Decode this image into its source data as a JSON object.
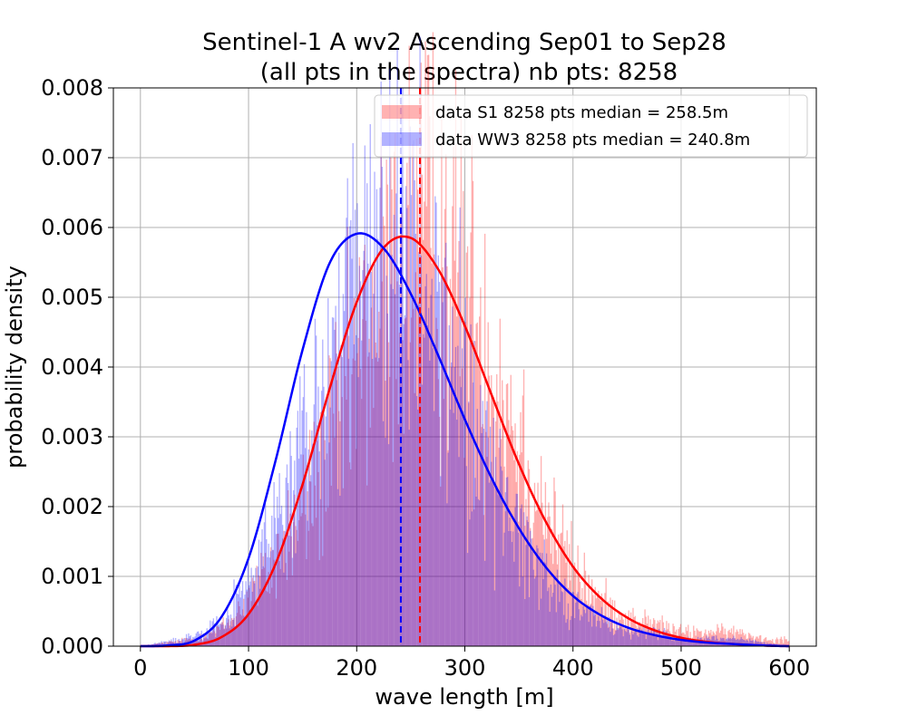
{
  "chart_data": {
    "type": "histogram",
    "title": [
      "Sentinel-1 A wv2 Ascending Sep01 to Sep28",
      "(all pts in the spectra) nb pts: 8258"
    ],
    "xlabel": "wave length [m]",
    "ylabel": "probability density",
    "xlim": [
      -25,
      625
    ],
    "ylim": [
      0,
      0.008
    ],
    "xticks": [
      0,
      100,
      200,
      300,
      400,
      500,
      600
    ],
    "xtick_labels": [
      "0",
      "100",
      "200",
      "300",
      "400",
      "500",
      "600"
    ],
    "yticks": [
      0,
      0.001,
      0.002,
      0.003,
      0.004,
      0.005,
      0.006,
      0.007,
      0.008
    ],
    "ytick_labels": [
      "0.000",
      "0.001",
      "0.002",
      "0.003",
      "0.004",
      "0.005",
      "0.006",
      "0.007",
      "0.008"
    ],
    "grid": true,
    "legend_position": "top-right",
    "legend": [
      "data S1 8258 pts median = 258.5m",
      "data WW3 8258 pts median = 240.8m"
    ],
    "histograms": [
      {
        "name": "data S1 8258 pts median = 258.5m",
        "color": "#ff0000",
        "alpha": 0.3,
        "range": [
          0,
          600
        ],
        "bin_width": 1,
        "density_profile": {
          "x": [
            0,
            50,
            80,
            100,
            120,
            150,
            180,
            200,
            220,
            240,
            250,
            260,
            280,
            300,
            320,
            350,
            380,
            400,
            420,
            450,
            480,
            500,
            550,
            580,
            600
          ],
          "y": [
            0,
            0.0001,
            0.0003,
            0.0007,
            0.0011,
            0.0019,
            0.003,
            0.0039,
            0.0048,
            0.0055,
            0.0058,
            0.0059,
            0.0056,
            0.0051,
            0.0043,
            0.003,
            0.0017,
            0.0011,
            0.0007,
            0.0004,
            0.0003,
            0.0002,
            0.0002,
            0.0001,
            0.0001
          ]
        }
      },
      {
        "name": "data WW3 8258 pts median = 240.8m",
        "color": "#0000ff",
        "alpha": 0.3,
        "range": [
          0,
          600
        ],
        "bin_width": 1,
        "density_profile": {
          "x": [
            0,
            40,
            80,
            100,
            120,
            150,
            180,
            200,
            220,
            230,
            240,
            260,
            280,
            300,
            320,
            350,
            380,
            400,
            420,
            450,
            480,
            500,
            550,
            600
          ],
          "y": [
            0,
            0.0001,
            0.0004,
            0.0009,
            0.0015,
            0.0027,
            0.0042,
            0.005,
            0.0056,
            0.0057,
            0.0056,
            0.0051,
            0.0044,
            0.0036,
            0.0027,
            0.0016,
            0.0009,
            0.0006,
            0.0004,
            0.0002,
            0.0002,
            0.0001,
            0.0001,
            0
          ]
        }
      }
    ],
    "fit_curves": [
      {
        "name": "S1 fit",
        "color": "#ff0000",
        "x": [
          0,
          25,
          50,
          75,
          100,
          125,
          150,
          175,
          200,
          225,
          250,
          275,
          300,
          325,
          350,
          375,
          400,
          425,
          450,
          475,
          500,
          525,
          550,
          575,
          600
        ],
        "y": [
          0,
          0,
          2e-05,
          0.00013,
          0.00046,
          0.00118,
          0.00232,
          0.00369,
          0.00493,
          0.00571,
          0.00585,
          0.00541,
          0.00459,
          0.00359,
          0.00261,
          0.00178,
          0.00114,
          0.0007,
          0.00041,
          0.00023,
          0.00012,
          6e-05,
          3e-05,
          1e-05,
          0
        ]
      },
      {
        "name": "WW3 fit",
        "color": "#0000ff",
        "x": [
          0,
          25,
          50,
          75,
          100,
          125,
          150,
          175,
          200,
          225,
          250,
          275,
          300,
          325,
          350,
          375,
          400,
          425,
          450,
          475,
          500,
          525,
          550,
          575,
          600
        ],
        "y": [
          0,
          1e-05,
          8e-05,
          0.00042,
          0.00126,
          0.00266,
          0.00425,
          0.00549,
          0.00591,
          0.0057,
          0.00505,
          0.00418,
          0.00325,
          0.0024,
          0.00169,
          0.00113,
          0.00072,
          0.00045,
          0.00027,
          0.00016,
          9e-05,
          5e-05,
          3e-05,
          1e-05,
          0
        ]
      }
    ],
    "vlines": [
      {
        "name": "WW3 median",
        "x": 240.8,
        "color": "#0000ff",
        "style": "dashed"
      },
      {
        "name": "S1 median",
        "x": 258.5,
        "color": "#ff0000",
        "style": "dashed"
      }
    ]
  }
}
